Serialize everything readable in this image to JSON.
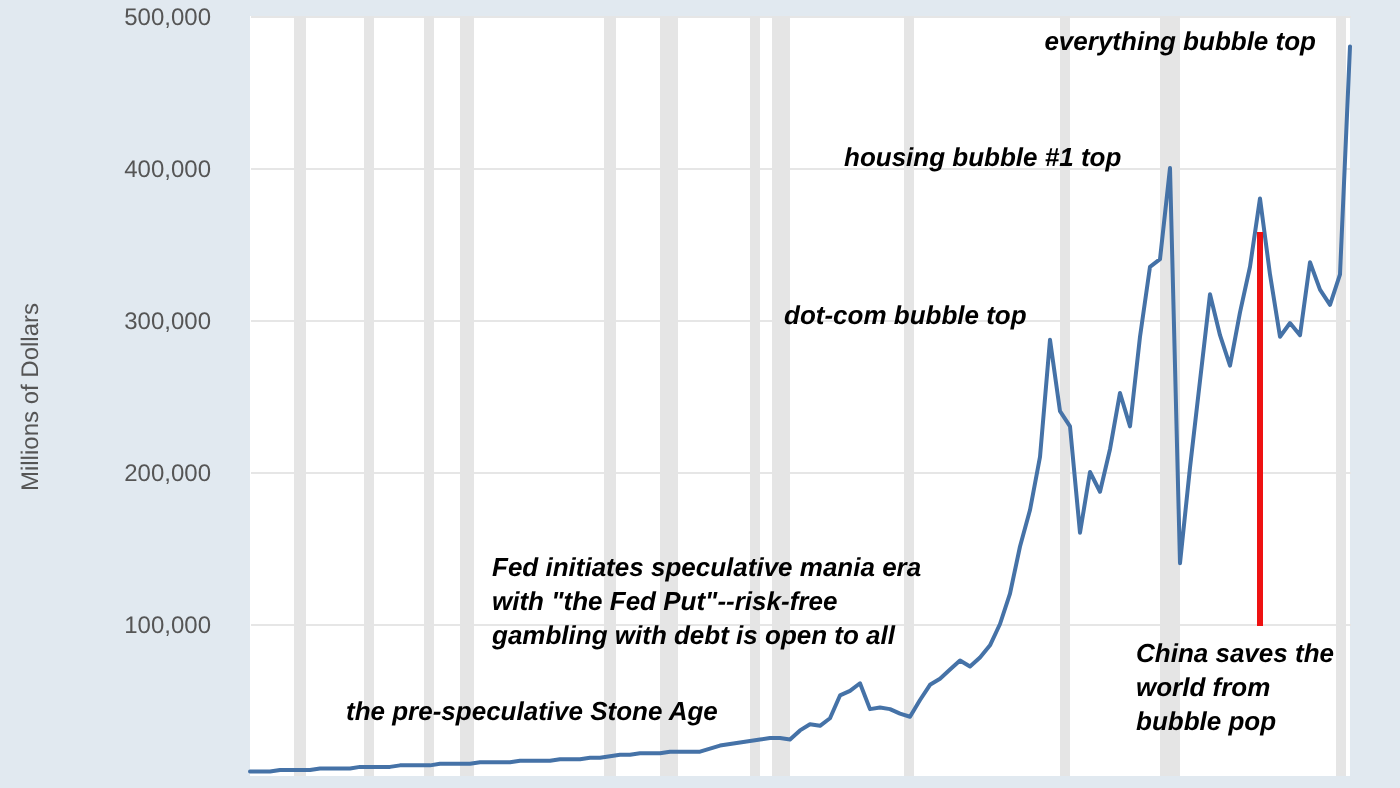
{
  "chart_data": {
    "type": "line",
    "ylabel": "Millions of Dollars",
    "categories": [
      null,
      null,
      null,
      null,
      null,
      null,
      null,
      null,
      null,
      null,
      null,
      null,
      null,
      null,
      null,
      null,
      null,
      null,
      null,
      null,
      null,
      null,
      null,
      null,
      null,
      null,
      null,
      null,
      null,
      null,
      null,
      null,
      null,
      null,
      null,
      null,
      null,
      null,
      null,
      null,
      null,
      null,
      null,
      null,
      null,
      null,
      null,
      null,
      null,
      null,
      null,
      null,
      null,
      null,
      null,
      null,
      null,
      null,
      null,
      null,
      null,
      null,
      null,
      null,
      null,
      null,
      null,
      null,
      null,
      null,
      null,
      null,
      null,
      null,
      null,
      null,
      null,
      null,
      null,
      null,
      null,
      null,
      null,
      null,
      null,
      null,
      null,
      null,
      null,
      null,
      null,
      null,
      null,
      null,
      null,
      null,
      null,
      null,
      null,
      null,
      null,
      null,
      null,
      null,
      null,
      null,
      null,
      null,
      null,
      null,
      null
    ],
    "values": [
      3000,
      3000,
      3000,
      4000,
      4000,
      4000,
      4000,
      5000,
      5000,
      5000,
      5000,
      6000,
      6000,
      6000,
      6000,
      7000,
      7000,
      7000,
      7000,
      8000,
      8000,
      8000,
      8000,
      9000,
      9000,
      9000,
      9000,
      10000,
      10000,
      10000,
      10000,
      11000,
      11000,
      11000,
      12000,
      12000,
      13000,
      14000,
      14000,
      15000,
      15000,
      15000,
      16000,
      16000,
      16000,
      16000,
      18000,
      20000,
      21000,
      22000,
      23000,
      24000,
      25000,
      25000,
      24000,
      30000,
      34000,
      33000,
      38000,
      53000,
      56000,
      61000,
      44000,
      45000,
      44000,
      41000,
      39000,
      50000,
      60000,
      64000,
      70000,
      76000,
      72000,
      78000,
      86000,
      100000,
      120000,
      151000,
      175000,
      210000,
      287000,
      240000,
      230000,
      160000,
      200000,
      187000,
      215000,
      252000,
      230000,
      289000,
      335000,
      340000,
      400000,
      140000,
      203000,
      260000,
      317000,
      290000,
      270000,
      305000,
      335000,
      380000,
      330000,
      289000,
      298000,
      290000,
      338000,
      320000,
      310000,
      330000,
      480000
    ],
    "color": "#4572a7",
    "ylim": [
      0,
      500000
    ],
    "yticks": [
      {
        "value": 100000,
        "label": "100,000"
      },
      {
        "value": 200000,
        "label": "200,000"
      },
      {
        "value": 300000,
        "label": "300,000"
      },
      {
        "value": 400000,
        "label": "400,000"
      },
      {
        "value": 500000,
        "label": "500,000"
      }
    ],
    "grid": "y",
    "tick_labels": "y",
    "annotations": [
      "everything bubble top",
      "housing bubble #1 top",
      "dot-com bubble top",
      "Fed initiates speculative mania era with \"the Fed Put\"--risk-free gambling with debt is open to all",
      "the pre-speculative Stone Age",
      "China saves the world from bubble pop"
    ]
  }
}
